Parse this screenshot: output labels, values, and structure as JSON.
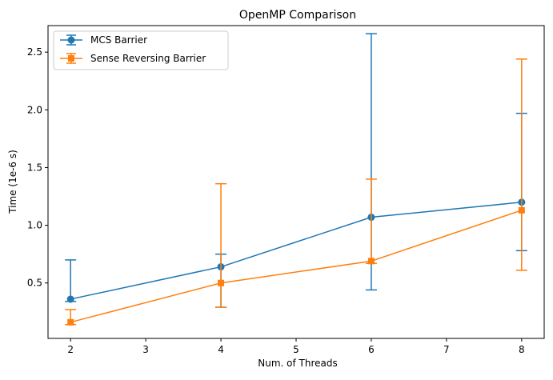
{
  "chart_data": {
    "type": "line",
    "title": "OpenMP Comparison",
    "xlabel": "Num. of Threads",
    "ylabel": "Time (1e-6 s)",
    "xlim": [
      1.7,
      8.3
    ],
    "ylim": [
      0.02,
      2.73
    ],
    "xticks": [
      2,
      3,
      4,
      5,
      6,
      7,
      8
    ],
    "yticks": [
      0.5,
      1.0,
      1.5,
      2.0,
      2.5
    ],
    "ytick_labels": [
      "0.5",
      "1.0",
      "1.5",
      "2.0",
      "2.5"
    ],
    "legend_position": "top-left",
    "grid": false,
    "series": [
      {
        "name": "MCS Barrier",
        "color": "#1f77b4",
        "marker": "circle",
        "x": [
          2,
          4,
          6,
          8
        ],
        "y": [
          0.36,
          0.64,
          1.07,
          1.2
        ],
        "err_low": [
          0.34,
          0.29,
          0.44,
          0.78
        ],
        "err_high": [
          0.7,
          0.75,
          2.66,
          1.97
        ]
      },
      {
        "name": "Sense Reversing Barrier",
        "color": "#ff7f0e",
        "marker": "square",
        "x": [
          2,
          4,
          6,
          8
        ],
        "y": [
          0.16,
          0.5,
          0.69,
          1.13
        ],
        "err_low": [
          0.14,
          0.29,
          0.67,
          0.61
        ],
        "err_high": [
          0.27,
          1.36,
          1.4,
          2.44
        ]
      }
    ]
  }
}
